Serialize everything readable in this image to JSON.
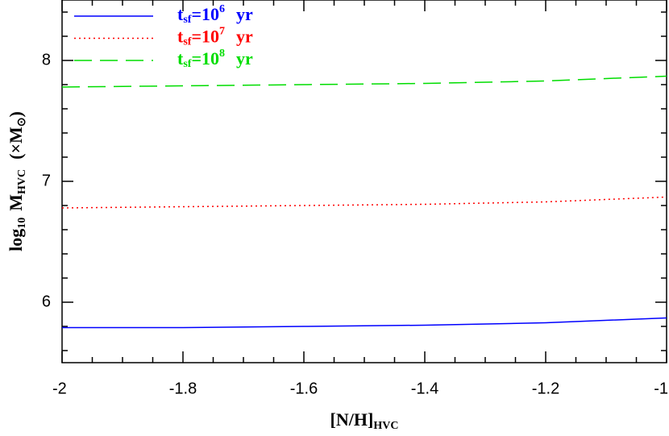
{
  "chart_data": {
    "type": "line",
    "x_label": {
      "main": "[N/H]",
      "sub": "HVC"
    },
    "y_label": {
      "a": "log",
      "a_sub": "10",
      "b": "M",
      "b_sub": "HVC",
      "c": "(×M",
      "c_sub": "⊙",
      "d": ")"
    },
    "x": [
      -2,
      -1.8,
      -1.6,
      -1.4,
      -1.2,
      -1
    ],
    "series": [
      {
        "name": {
          "base": "t",
          "sub": "sf",
          "mid": "=10",
          "sup": "6",
          "tail": "yr"
        },
        "color": "#0000ff",
        "style": "solid",
        "values": [
          5.79,
          5.79,
          5.8,
          5.81,
          5.83,
          5.87
        ]
      },
      {
        "name": {
          "base": "t",
          "sub": "sf",
          "mid": "=10",
          "sup": "7",
          "tail": "yr"
        },
        "color": "#ff0000",
        "style": "dotted",
        "values": [
          6.78,
          6.79,
          6.8,
          6.81,
          6.83,
          6.87
        ]
      },
      {
        "name": {
          "base": "t",
          "sub": "sf",
          "mid": "=10",
          "sup": "8",
          "tail": "yr"
        },
        "color": "#00dd00",
        "style": "dashed",
        "values": [
          7.78,
          7.79,
          7.8,
          7.81,
          7.83,
          7.87
        ]
      }
    ],
    "xlim": [
      -2,
      -1
    ],
    "ylim": [
      5.5,
      8.5
    ],
    "xticks": [
      -2,
      -1.8,
      -1.6,
      -1.4,
      -1.2,
      -1
    ],
    "yticks": [
      6,
      7,
      8
    ],
    "xminorticks": [
      -1.95,
      -1.9,
      -1.85,
      -1.75,
      -1.7,
      -1.65,
      -1.55,
      -1.5,
      -1.45,
      -1.35,
      -1.3,
      -1.25,
      -1.15,
      -1.1,
      -1.05
    ],
    "yminorticks": [
      5.6,
      5.8,
      6.2,
      6.4,
      6.6,
      6.8,
      7.2,
      7.4,
      7.6,
      7.8,
      8.2,
      8.4
    ],
    "legend": "upper left"
  }
}
